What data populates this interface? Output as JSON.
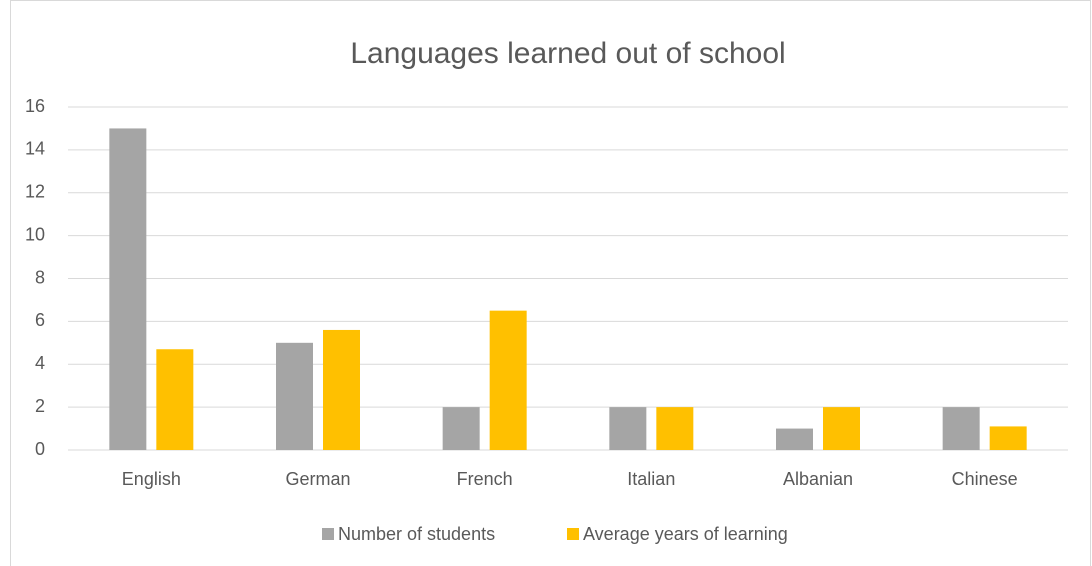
{
  "chart_data": {
    "type": "bar",
    "title": "Languages learned out of school",
    "categories": [
      "English",
      "German",
      "French",
      "Italian",
      "Albanian",
      "Chinese"
    ],
    "series": [
      {
        "name": "Number of students",
        "color": "#a5a5a5",
        "values": [
          15,
          5,
          2,
          2,
          1,
          2
        ]
      },
      {
        "name": "Average years of learning",
        "color": "#ffc000",
        "values": [
          4.7,
          5.6,
          6.5,
          2,
          2,
          1.1
        ]
      }
    ],
    "ylim": [
      0,
      16
    ],
    "yticks": [
      0,
      2,
      4,
      6,
      8,
      10,
      12,
      14,
      16
    ],
    "grid": true,
    "legend": "bottom"
  }
}
